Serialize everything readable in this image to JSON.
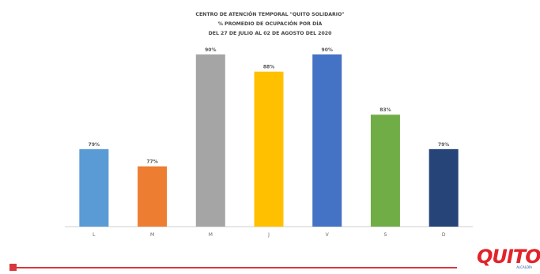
{
  "chart_data": {
    "type": "bar",
    "title_lines": [
      "CENTRO DE ATENCIÓN TEMPORAL \"QUITO SOLIDARIO\"",
      "% PROMEDIO DE OCUPACIÓN POR DÍA",
      "DEL 27 DE JULIO AL 02 DE AGOSTO DEL 2020"
    ],
    "categories": [
      "L",
      "M",
      "M",
      "J",
      "V",
      "S",
      "D"
    ],
    "values": [
      79,
      77,
      90,
      88,
      90,
      83,
      79
    ],
    "data_labels": [
      "79%",
      "77%",
      "90%",
      "88%",
      "90%",
      "83%",
      "79%"
    ],
    "ylim": [
      70,
      91
    ],
    "colors": [
      "#5b9bd5",
      "#ed7d31",
      "#a5a5a5",
      "#ffc000",
      "#4472c4",
      "#70ad47",
      "#264478"
    ],
    "grid": false,
    "legend": "none"
  },
  "logo": {
    "text": "QUITO",
    "sub": "ALCALDÍA"
  }
}
